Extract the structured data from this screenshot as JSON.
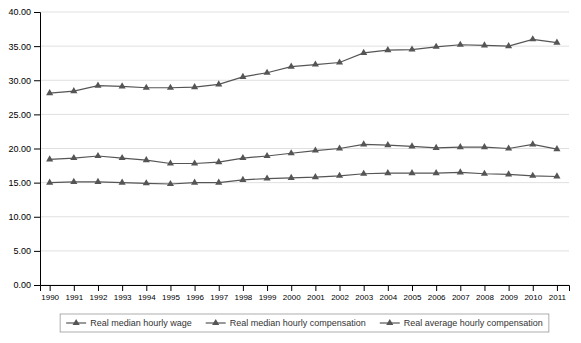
{
  "chart_data": {
    "type": "line",
    "x": [
      1990,
      1991,
      1992,
      1993,
      1994,
      1995,
      1996,
      1997,
      1998,
      1999,
      2000,
      2001,
      2002,
      2003,
      2004,
      2005,
      2006,
      2007,
      2008,
      2009,
      2010,
      2011
    ],
    "series": [
      {
        "name": "Real median hourly wage",
        "color": "#555555",
        "marker": "triangle",
        "values": [
          15.0,
          15.1,
          15.1,
          15.0,
          14.9,
          14.8,
          15.0,
          15.0,
          15.4,
          15.6,
          15.7,
          15.8,
          16.0,
          16.3,
          16.4,
          16.4,
          16.4,
          16.5,
          16.3,
          16.2,
          16.0,
          15.9
        ]
      },
      {
        "name": "Real median hourly compensation",
        "color": "#555555",
        "marker": "triangle",
        "values": [
          18.4,
          18.6,
          18.9,
          18.6,
          18.3,
          17.8,
          17.8,
          18.0,
          18.6,
          18.9,
          19.3,
          19.7,
          20.0,
          20.6,
          20.5,
          20.3,
          20.1,
          20.2,
          20.2,
          20.0,
          20.6,
          19.9
        ]
      },
      {
        "name": "Real average hourly compensation",
        "color": "#555555",
        "marker": "triangle",
        "values": [
          28.1,
          28.4,
          29.2,
          29.1,
          28.9,
          28.9,
          29.0,
          29.4,
          30.5,
          31.1,
          32.0,
          32.3,
          32.6,
          34.0,
          34.4,
          34.5,
          34.9,
          35.2,
          35.1,
          35.0,
          36.0,
          35.5
        ]
      }
    ],
    "xlim": [
      1989.6,
      2011.5
    ],
    "xticks": [
      1990,
      1991,
      1992,
      1993,
      1994,
      1995,
      1996,
      1997,
      1998,
      1999,
      2000,
      2001,
      2002,
      2003,
      2004,
      2005,
      2006,
      2007,
      2008,
      2009,
      2010,
      2011
    ],
    "ylim": [
      0,
      40
    ],
    "yticks": [
      {
        "value": 0,
        "label": "0.00"
      },
      {
        "value": 5,
        "label": "5.00"
      },
      {
        "value": 10,
        "label": "10.00"
      },
      {
        "value": 15,
        "label": "15.00"
      },
      {
        "value": 20,
        "label": "20.00"
      },
      {
        "value": 25,
        "label": "25.00"
      },
      {
        "value": 30,
        "label": "30.00"
      },
      {
        "value": 35,
        "label": "35.00"
      },
      {
        "value": 40,
        "label": "40.00"
      }
    ],
    "grid": true,
    "legend": "bottom"
  }
}
